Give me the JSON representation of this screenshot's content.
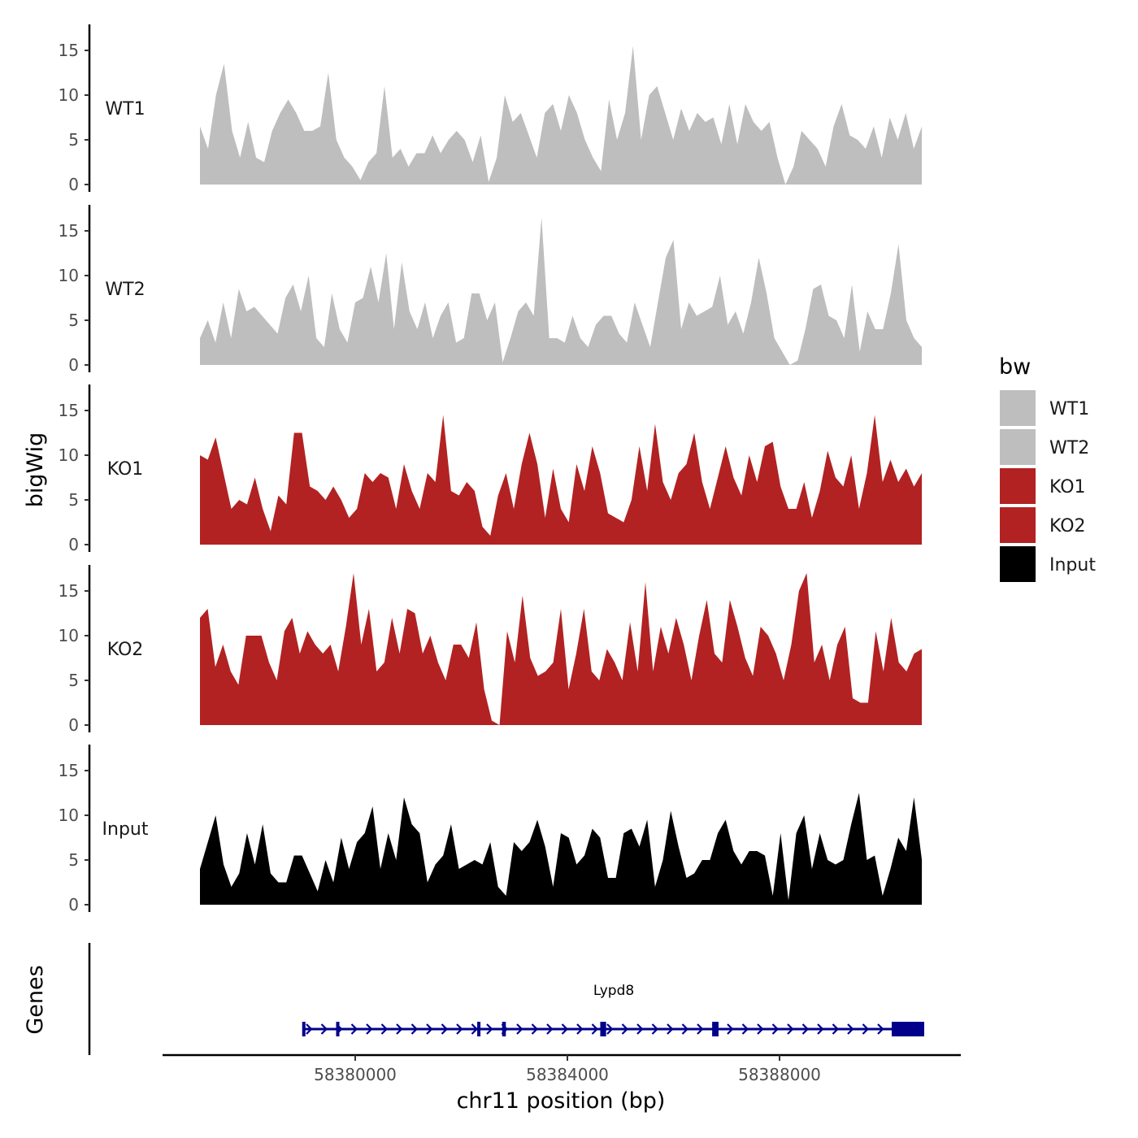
{
  "chart_data": {
    "type": "area",
    "ylabel": "bigWig",
    "xlabel": "chr11 position (bp)",
    "gene_track_label": "Genes",
    "x_range": [
      58376368,
      58391418
    ],
    "signal_x_range": [
      58377073,
      58390683
    ],
    "x_ticks": [
      58380000,
      58384000,
      58388000
    ],
    "x_tick_labels": [
      "58380000",
      "58384000",
      "58388000"
    ],
    "ylim": [
      0,
      17.9
    ],
    "y_ticks": [
      0,
      5,
      10,
      15
    ],
    "y_tick_labels": [
      "0",
      "5",
      "10",
      "15"
    ],
    "legend": {
      "title": "bw",
      "position": "right",
      "entries": [
        {
          "label": "WT1",
          "color": "#bebebe"
        },
        {
          "label": "WT2",
          "color": "#bebebe"
        },
        {
          "label": "KO1",
          "color": "#b22222"
        },
        {
          "label": "KO2",
          "color": "#b22222"
        },
        {
          "label": "Input",
          "color": "#000000"
        }
      ]
    },
    "series": [
      {
        "name": "WT1",
        "color": "#bebebe",
        "values": [
          6.5,
          4,
          10,
          13.5,
          6,
          3,
          7,
          3,
          2.5,
          6,
          8,
          9.5,
          8,
          6,
          6,
          6.5,
          12.5,
          5,
          3,
          2,
          0.5,
          2.5,
          3.5,
          11,
          3,
          4,
          2,
          3.5,
          3.5,
          5.5,
          3.5,
          5,
          6,
          5,
          2.5,
          5.5,
          0.3,
          3,
          10,
          7,
          8,
          5.5,
          3,
          8,
          9,
          6,
          10,
          8,
          5,
          3,
          1.5,
          9.5,
          5,
          8,
          15.5,
          5,
          10,
          11,
          8,
          5,
          8.5,
          6,
          8,
          7,
          7.5,
          4.5,
          9,
          4.5,
          9,
          7,
          6,
          7,
          3,
          0,
          2,
          6,
          5,
          4,
          2,
          6.5,
          9,
          5.5,
          5,
          4,
          6.5,
          3,
          7.5,
          5,
          8,
          4,
          6.5
        ]
      },
      {
        "name": "WT2",
        "color": "#bebebe",
        "values": [
          3,
          5,
          2.5,
          7,
          3,
          8.5,
          6,
          6.5,
          5.5,
          4.5,
          3.5,
          7.5,
          9,
          6,
          10,
          3,
          2,
          8,
          4,
          2.5,
          7,
          7.5,
          11,
          7,
          12.5,
          4,
          11.5,
          6,
          4,
          7,
          3,
          5.5,
          7,
          2.5,
          3,
          8,
          8,
          5,
          7,
          0.3,
          3,
          6,
          7,
          5.5,
          16.5,
          3,
          3,
          2.5,
          5.5,
          3,
          2,
          4.5,
          5.5,
          5.5,
          3.5,
          2.5,
          7,
          4.5,
          2,
          7,
          12,
          14,
          4,
          7,
          5.5,
          6,
          6.5,
          10,
          4.5,
          6,
          3.5,
          7,
          12,
          8,
          3,
          1.5,
          0,
          0.5,
          4,
          8.5,
          9,
          5.5,
          5,
          3,
          9,
          1.5,
          6,
          4,
          4,
          8,
          13.5,
          5,
          3,
          2
        ]
      },
      {
        "name": "KO1",
        "color": "#b22222",
        "values": [
          10,
          9.5,
          12,
          8,
          4,
          5,
          4.5,
          7.5,
          4,
          1.5,
          5.5,
          4.5,
          12.5,
          12.5,
          6.5,
          6,
          5,
          6.5,
          5,
          3,
          4,
          8,
          7,
          8,
          7.5,
          4,
          9,
          6,
          4,
          8,
          7,
          14.5,
          6,
          5.5,
          7,
          6,
          2,
          1,
          5.5,
          8,
          4,
          9,
          12.5,
          9,
          3,
          8.5,
          4,
          2.5,
          9,
          6,
          11,
          8,
          3.5,
          3,
          2.5,
          5,
          11,
          6,
          13.5,
          7,
          5,
          8,
          9,
          12.5,
          7,
          4,
          7.5,
          11,
          7.5,
          5.5,
          10,
          7,
          11,
          11.5,
          6.5,
          4,
          4,
          7,
          3,
          6,
          10.5,
          7.5,
          6.5,
          10,
          4,
          8,
          14.5,
          7,
          9.5,
          7,
          8.5,
          6.5,
          8
        ]
      },
      {
        "name": "KO2",
        "color": "#b22222",
        "values": [
          12,
          13,
          6.5,
          9,
          6,
          4.5,
          10,
          10,
          10,
          7,
          5,
          10.5,
          12,
          8,
          10.5,
          9,
          8,
          9,
          6,
          11,
          17,
          9,
          13,
          6,
          7,
          12,
          8,
          13,
          12.5,
          8,
          10,
          7,
          5,
          9,
          9,
          7.5,
          11.5,
          4,
          0.5,
          0,
          10.5,
          7,
          14.5,
          7.5,
          5.5,
          6,
          7,
          13,
          4,
          8,
          13,
          6,
          5,
          8.5,
          7,
          5,
          11.5,
          6,
          16,
          6,
          11,
          8,
          12,
          9,
          5,
          10,
          14,
          8,
          7,
          14,
          11,
          7.5,
          5.5,
          11,
          10,
          8,
          5,
          9,
          15,
          17,
          7,
          9,
          5,
          9,
          11,
          3,
          2.5,
          2.5,
          10.5,
          6,
          12,
          7,
          6,
          8,
          8.5
        ]
      },
      {
        "name": "Input",
        "color": "#000000",
        "values": [
          4,
          7,
          10,
          4.5,
          2,
          3.5,
          8,
          4.5,
          9,
          3.5,
          2.5,
          2.5,
          5.5,
          5.5,
          3.5,
          1.5,
          5,
          2.5,
          7.5,
          4,
          7,
          8,
          11,
          4,
          8,
          5,
          12,
          9,
          8,
          2.5,
          4.5,
          5.5,
          9,
          4,
          4.5,
          5,
          4.5,
          7,
          2,
          1,
          7,
          6,
          7,
          9.5,
          6.5,
          2,
          8,
          7.5,
          4.5,
          5.5,
          8.5,
          7.5,
          3,
          3,
          8,
          8.5,
          6.5,
          9.5,
          2,
          5,
          10.5,
          6.5,
          3,
          3.5,
          5,
          5,
          8,
          9.5,
          6,
          4.5,
          6,
          6,
          5.5,
          1,
          8,
          0.5,
          8,
          10,
          4,
          8,
          5,
          4.5,
          5,
          9,
          12.5,
          5,
          5.5,
          1,
          4,
          7.5,
          6,
          12,
          5
        ]
      }
    ],
    "gene": {
      "name": "Lypd8",
      "strand": "+",
      "start": 58379019,
      "end": 58390728,
      "color": "#00008b",
      "exons": [
        [
          58379000,
          58379040
        ],
        [
          58379640,
          58379690
        ],
        [
          58382300,
          58382360
        ],
        [
          58382770,
          58382840
        ],
        [
          58384620,
          58384730
        ],
        [
          58386730,
          58386850
        ],
        [
          58390115,
          58390728
        ]
      ]
    }
  }
}
